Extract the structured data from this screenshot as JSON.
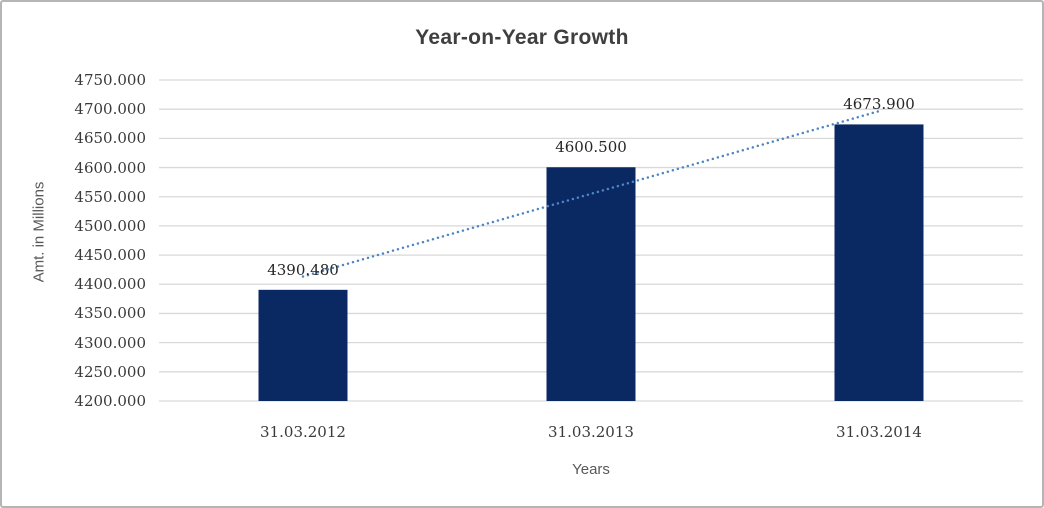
{
  "chart_data": {
    "type": "bar",
    "title": "Year-on-Year Growth",
    "xlabel": "Years",
    "ylabel": "Amt. in Millions",
    "categories": [
      "31.03.2012",
      "31.03.2013",
      "31.03.2014"
    ],
    "values": [
      4390.48,
      4600.5,
      4673.9
    ],
    "data_labels": [
      "4390.480",
      "4600.500",
      "4673.900"
    ],
    "ylim": [
      4200,
      4750
    ],
    "ytick_step": 50,
    "ytick_labels": [
      "4750.000",
      "4700.000",
      "4650.000",
      "4600.000",
      "4550.000",
      "4500.000",
      "4450.000",
      "4400.000",
      "4350.000",
      "4300.000",
      "4250.000",
      "4200.000"
    ],
    "grid": true,
    "legend": "none",
    "trendline": {
      "type": "linear",
      "style": "dotted",
      "start_value": 4413.3,
      "end_value": 4696.7
    },
    "colors": {
      "bar": "#0a2963",
      "trendline": "#4e86c4",
      "gridline": "#d9d9d9",
      "title": "#3f3f3f",
      "tick_label": "#3a3a3a",
      "data_label": "#262626",
      "axis_title": "#595959",
      "frame_border": "#b5b5b5",
      "background": "#ffffff"
    }
  }
}
